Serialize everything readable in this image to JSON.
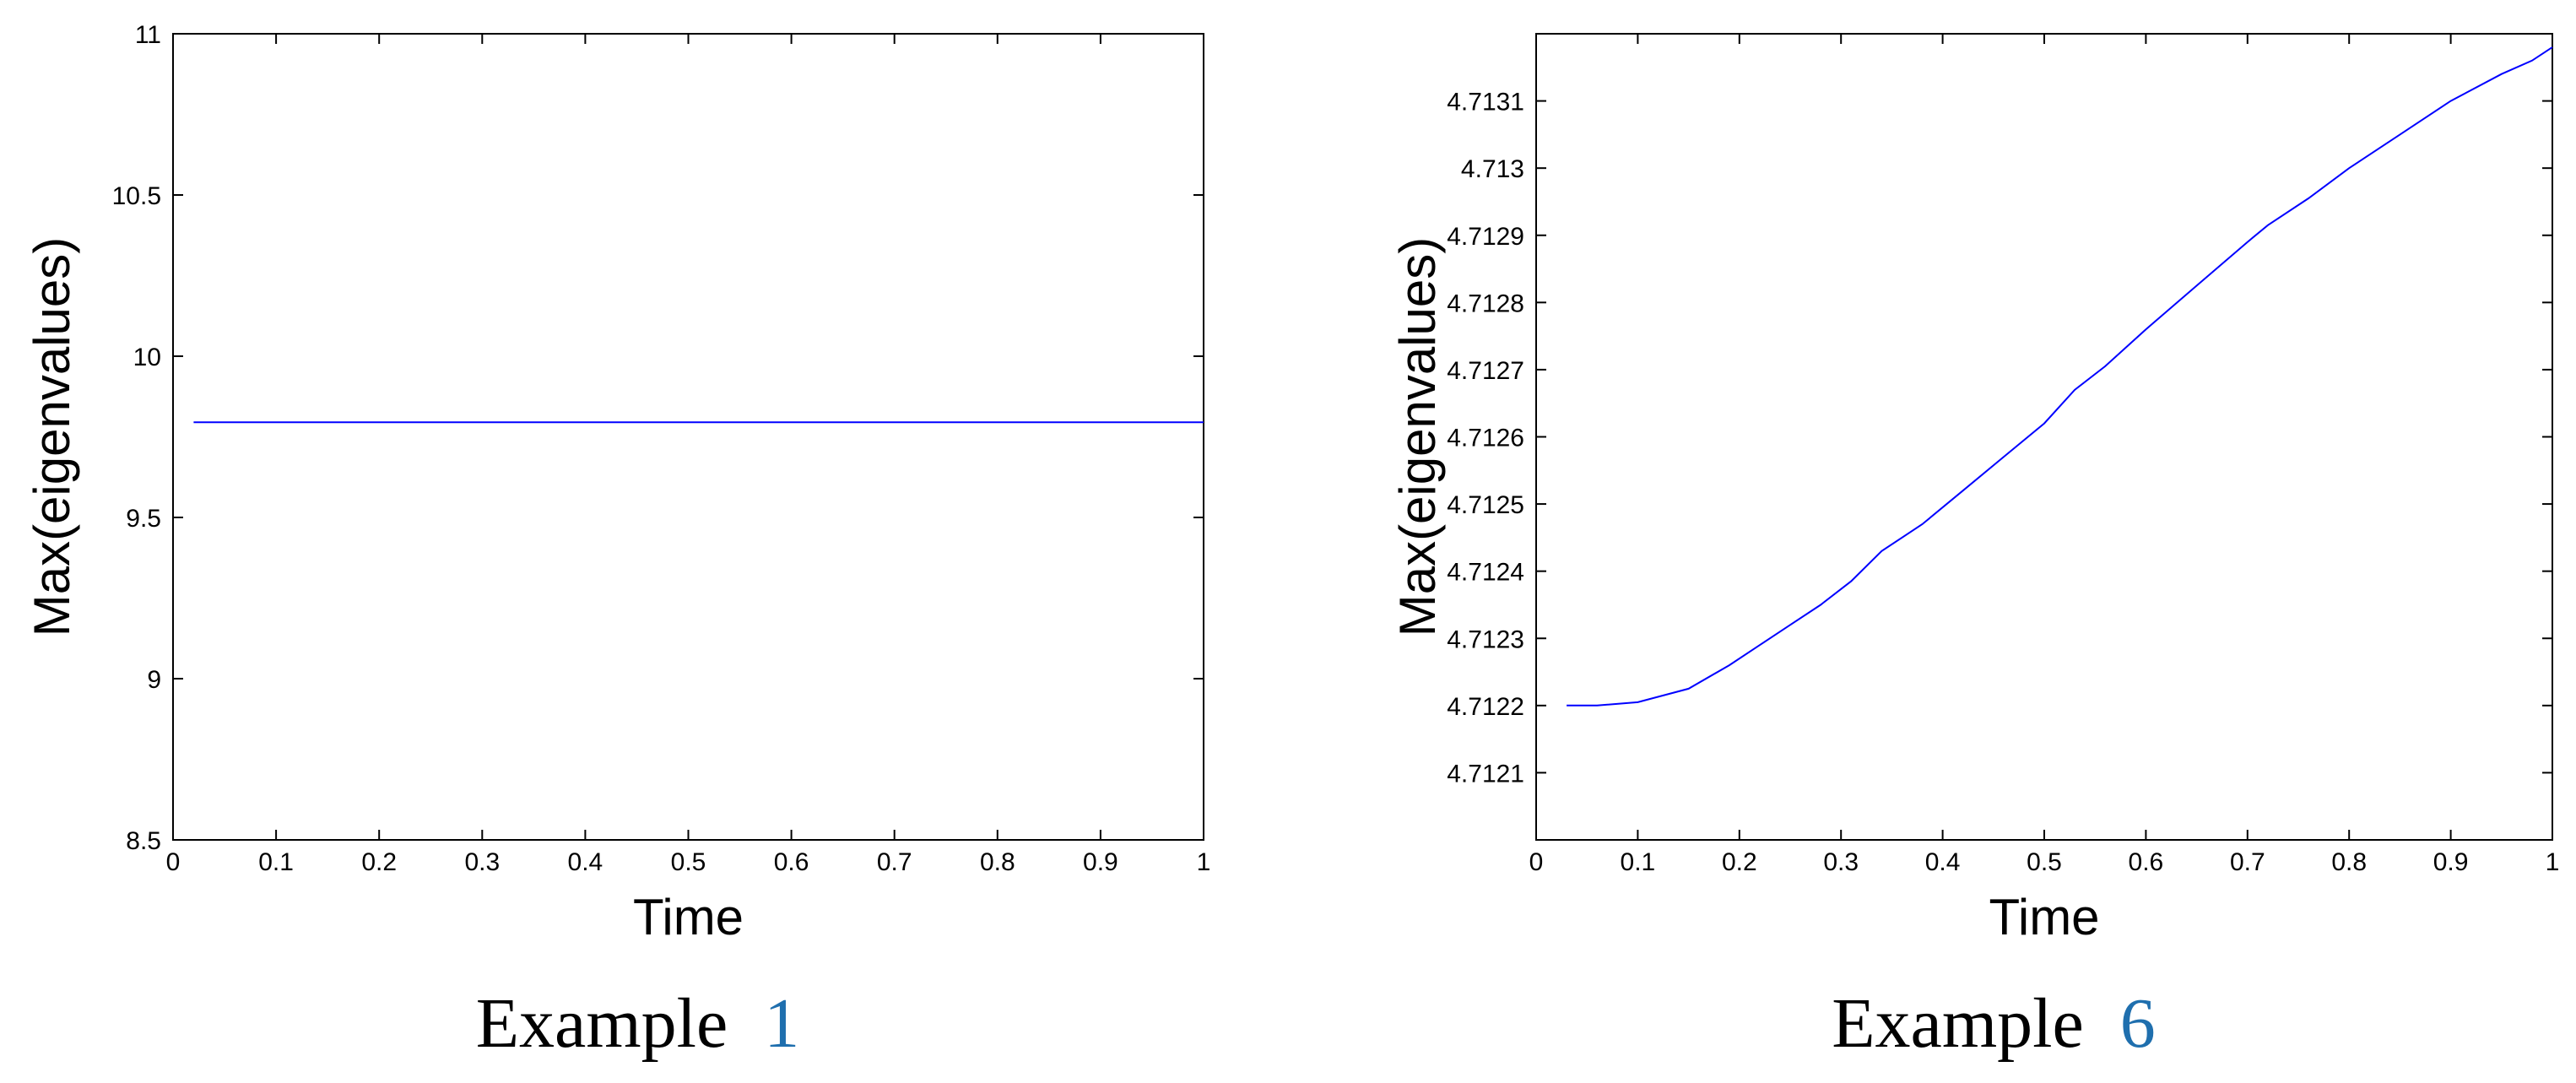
{
  "chart_data": [
    {
      "type": "line",
      "xlabel": "Time",
      "ylabel": "Max(eigenvalues)",
      "xlim": [
        0,
        1
      ],
      "ylim": [
        8.5,
        11
      ],
      "xticks": [
        "0",
        "0.1",
        "0.2",
        "0.3",
        "0.4",
        "0.5",
        "0.6",
        "0.7",
        "0.8",
        "0.9",
        "1"
      ],
      "yticks": [
        "8.5",
        "9",
        "9.5",
        "10",
        "10.5",
        "11"
      ],
      "grid": false,
      "series": [
        {
          "color": "#0000ff",
          "x": [
            0.02,
            1.0
          ],
          "y": [
            9.795,
            9.795
          ]
        }
      ],
      "caption": {
        "prefix": "Example ",
        "ref": "1"
      }
    },
    {
      "type": "line",
      "xlabel": "Time",
      "ylabel": "Max(eigenvalues)",
      "xlim": [
        0,
        1
      ],
      "ylim": [
        4.712,
        4.7132
      ],
      "xticks": [
        "0",
        "0.1",
        "0.2",
        "0.3",
        "0.4",
        "0.5",
        "0.6",
        "0.7",
        "0.8",
        "0.9",
        "1"
      ],
      "yticks": [
        "4.7121",
        "4.7122",
        "4.7123",
        "4.7124",
        "4.7125",
        "4.7126",
        "4.7127",
        "4.7128",
        "4.7129",
        "4.713",
        "4.7131"
      ],
      "grid": false,
      "series": [
        {
          "color": "#0000ff",
          "x": [
            0.03,
            0.06,
            0.1,
            0.15,
            0.19,
            0.22,
            0.25,
            0.28,
            0.31,
            0.34,
            0.38,
            0.42,
            0.46,
            0.5,
            0.53,
            0.56,
            0.6,
            0.65,
            0.7,
            0.72,
            0.76,
            0.8,
            0.85,
            0.9,
            0.95,
            0.98,
            1.0
          ],
          "y": [
            4.7122,
            4.7122,
            4.712205,
            4.712225,
            4.71226,
            4.71229,
            4.71232,
            4.71235,
            4.712385,
            4.71243,
            4.71247,
            4.71252,
            4.71257,
            4.71262,
            4.71267,
            4.712705,
            4.71276,
            4.712825,
            4.71289,
            4.712915,
            4.712955,
            4.713,
            4.71305,
            4.7131,
            4.71314,
            4.71316,
            4.71318
          ]
        }
      ],
      "caption": {
        "prefix": "Example ",
        "ref": "6"
      }
    }
  ]
}
